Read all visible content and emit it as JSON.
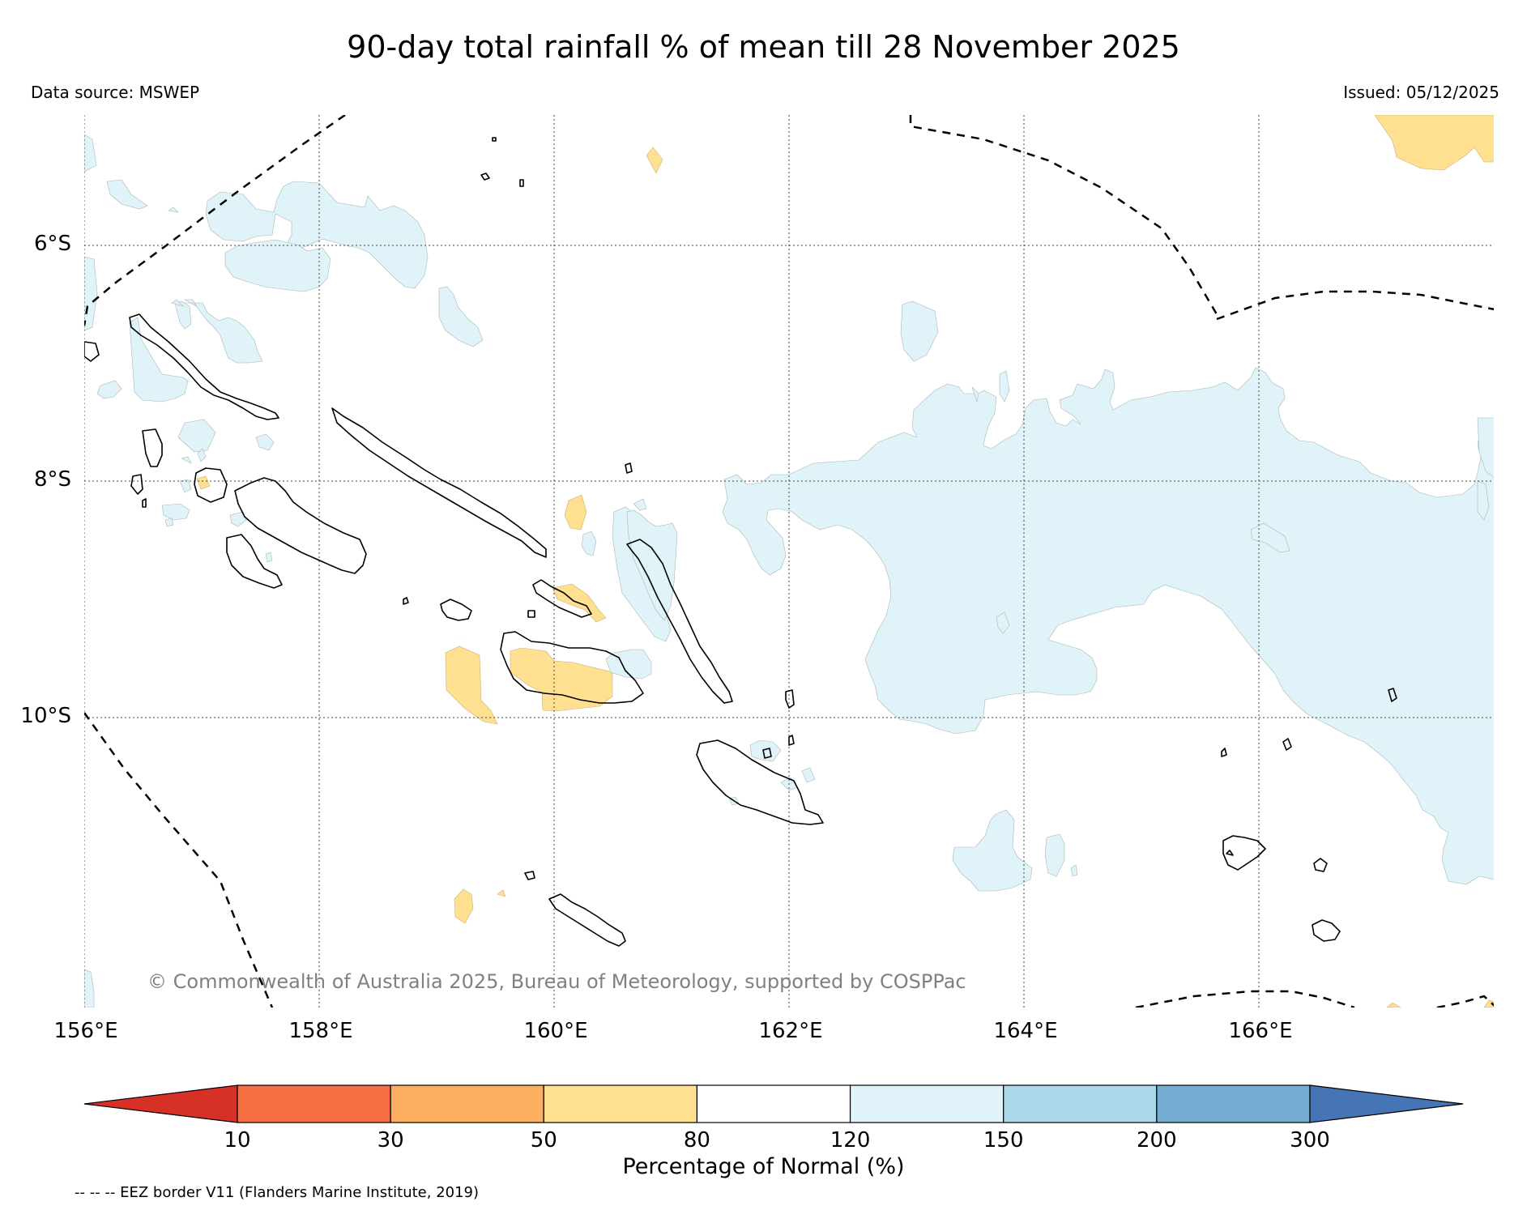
{
  "title": "90-day total rainfall % of mean till 28 November 2025",
  "data_source": "Data source: MSWEP",
  "issued": "Issued: 05/12/2025",
  "copyright": "© Commonwealth of Australia 2025, Bureau of Meteorology, supported by COSPPac",
  "map": {
    "longitude_labels": [
      "156°E",
      "158°E",
      "160°E",
      "162°E",
      "164°E",
      "166°E"
    ],
    "latitude_labels": [
      "6°S",
      "8°S",
      "10°S"
    ],
    "lon_range": [
      156,
      168
    ],
    "lat_range": [
      -12.3,
      -4.8
    ],
    "eez_border": "dashed",
    "anomaly_categories_present": [
      "50-80",
      "120-150"
    ]
  },
  "colorbar": {
    "label": "Percentage of Normal (%)",
    "ticks": [
      "10",
      "30",
      "50",
      "80",
      "120",
      "150",
      "200",
      "300"
    ],
    "bins": [
      {
        "range": "<10",
        "color": "#d73027"
      },
      {
        "range": "10-30",
        "color": "#f46d43"
      },
      {
        "range": "30-50",
        "color": "#fdae61"
      },
      {
        "range": "50-80",
        "color": "#fee090"
      },
      {
        "range": "80-120",
        "color": "#ffffff"
      },
      {
        "range": "120-150",
        "color": "#e0f3f8"
      },
      {
        "range": "150-200",
        "color": "#abd9e9"
      },
      {
        "range": "200-300",
        "color": "#74add1"
      },
      {
        "range": ">300",
        "color": "#4575b4"
      }
    ]
  },
  "legend_note": "-- -- -- EEZ border V11 (Flanders Marine Institute, 2019)"
}
